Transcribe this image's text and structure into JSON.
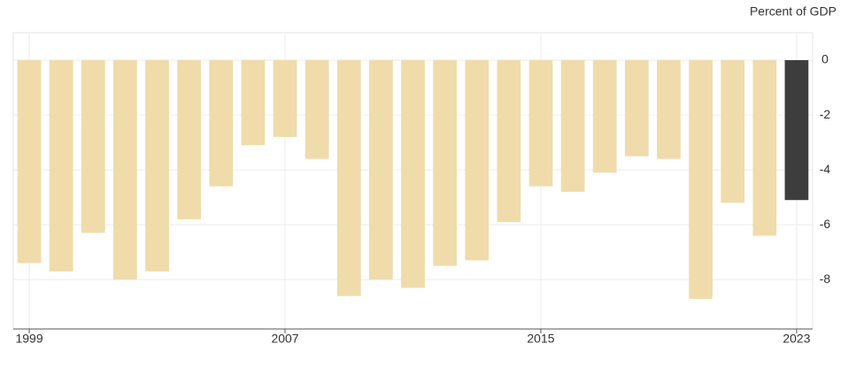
{
  "chart_data": {
    "type": "bar",
    "unit_label": "Percent of GDP",
    "categories": [
      "1999",
      null,
      null,
      null,
      null,
      null,
      null,
      null,
      "2007",
      null,
      null,
      null,
      null,
      null,
      null,
      null,
      "2015",
      null,
      null,
      null,
      null,
      null,
      null,
      null,
      "2023"
    ],
    "values": [
      -7.4,
      -7.7,
      -6.3,
      -8.0,
      -7.7,
      -5.8,
      -4.6,
      -3.1,
      -2.8,
      -3.6,
      -8.6,
      -8.0,
      -8.3,
      -7.5,
      -7.3,
      -5.9,
      -4.6,
      -4.8,
      -4.1,
      -3.5,
      -3.6,
      -8.7,
      -5.2,
      -6.4,
      -5.1
    ],
    "colors": [
      "#f0dcaa",
      "#f0dcaa",
      "#f0dcaa",
      "#f0dcaa",
      "#f0dcaa",
      "#f0dcaa",
      "#f0dcaa",
      "#f0dcaa",
      "#f0dcaa",
      "#f0dcaa",
      "#f0dcaa",
      "#f0dcaa",
      "#f0dcaa",
      "#f0dcaa",
      "#f0dcaa",
      "#f0dcaa",
      "#f0dcaa",
      "#f0dcaa",
      "#f0dcaa",
      "#f0dcaa",
      "#f0dcaa",
      "#f0dcaa",
      "#f0dcaa",
      "#f0dcaa",
      "#3d3d3d"
    ],
    "ylim": [
      -9.8,
      1.0
    ],
    "yticks": [
      0,
      -2,
      -4,
      -6,
      -8
    ],
    "grid": true
  }
}
